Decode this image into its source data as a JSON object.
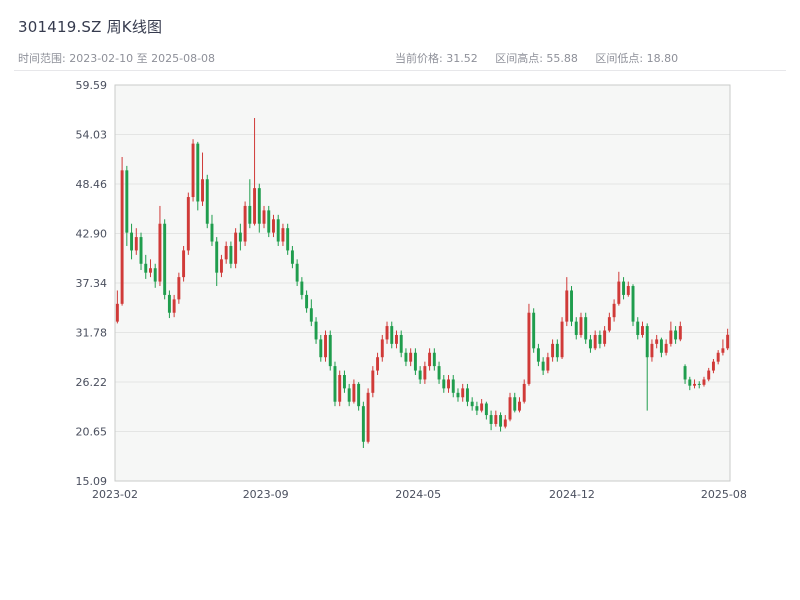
{
  "header": {
    "title": "301419.SZ 周K线图",
    "time_range_label": "时间范围: 2023-02-10 至 2025-08-08",
    "current_price_label": "当前价格: 31.52",
    "range_high_label": "区间高点: 55.88",
    "range_low_label": "区间低点: 18.80"
  },
  "chart_data": {
    "type": "candlestick",
    "title": "301419.SZ 周K线图",
    "interval": "weekly",
    "ticker": "301419.SZ",
    "current_price": 31.52,
    "range_high": 55.88,
    "range_low": 18.8,
    "date_start": "2023-02-10",
    "date_end": "2025-08-08",
    "ylim": [
      15.09,
      59.59
    ],
    "y_ticks": [
      15.09,
      20.65,
      26.22,
      31.78,
      37.34,
      42.9,
      48.46,
      54.03,
      59.59
    ],
    "y_tick_labels": [
      "15.09",
      "20.65",
      "26.22",
      "31.78",
      "37.34",
      "42.90",
      "48.46",
      "54.03",
      "59.59"
    ],
    "x_tick_labels": [
      "2023-02",
      "2023-09",
      "2024-05",
      "2024-12",
      "2025-08"
    ],
    "x_tick_positions": [
      0.0,
      0.245,
      0.493,
      0.743,
      0.99
    ],
    "grid": true,
    "legend": "none",
    "up_color": "#d03a38",
    "down_color": "#1f9d4d",
    "plot_bg": "#f6f7f6",
    "grid_color": "#e4e5e4",
    "axis_border_color": "#c9cbca",
    "tick_label_color": "#4a4f5e",
    "candles_format": "[open, high, low, close] per week",
    "candles": [
      [
        33.0,
        36.5,
        32.8,
        35.0
      ],
      [
        35.0,
        51.5,
        34.8,
        50.0
      ],
      [
        50.0,
        50.5,
        41.5,
        43.0
      ],
      [
        43.0,
        44.0,
        40.0,
        41.0
      ],
      [
        41.0,
        43.5,
        40.5,
        42.5
      ],
      [
        42.5,
        43.0,
        38.8,
        39.5
      ],
      [
        39.5,
        40.5,
        37.8,
        38.5
      ],
      [
        38.5,
        40.0,
        38.0,
        39.0
      ],
      [
        39.0,
        39.5,
        36.8,
        37.5
      ],
      [
        37.5,
        46.0,
        37.0,
        44.0
      ],
      [
        44.0,
        44.5,
        35.5,
        36.0
      ],
      [
        36.0,
        36.5,
        33.4,
        34.0
      ],
      [
        34.0,
        36.0,
        33.5,
        35.5
      ],
      [
        35.5,
        38.5,
        35.0,
        38.0
      ],
      [
        38.0,
        41.5,
        37.5,
        41.0
      ],
      [
        41.0,
        47.5,
        40.5,
        47.0
      ],
      [
        47.0,
        53.5,
        46.5,
        53.0
      ],
      [
        53.0,
        53.2,
        45.5,
        46.5
      ],
      [
        46.5,
        52.0,
        46.0,
        49.0
      ],
      [
        49.0,
        49.5,
        43.5,
        44.0
      ],
      [
        44.0,
        45.0,
        41.5,
        42.0
      ],
      [
        42.0,
        42.5,
        37.0,
        38.5
      ],
      [
        38.5,
        40.5,
        38.0,
        40.0
      ],
      [
        40.0,
        42.0,
        39.5,
        41.5
      ],
      [
        41.5,
        42.0,
        39.0,
        39.5
      ],
      [
        39.5,
        43.5,
        39.0,
        43.0
      ],
      [
        43.0,
        44.0,
        41.0,
        42.0
      ],
      [
        42.0,
        46.5,
        41.5,
        46.0
      ],
      [
        46.0,
        49.0,
        43.5,
        44.0
      ],
      [
        44.0,
        55.88,
        43.8,
        48.0
      ],
      [
        48.0,
        48.5,
        43.0,
        44.0
      ],
      [
        44.0,
        46.0,
        43.5,
        45.5
      ],
      [
        45.5,
        46.0,
        42.5,
        43.0
      ],
      [
        43.0,
        45.0,
        42.5,
        44.5
      ],
      [
        44.5,
        45.0,
        41.5,
        42.0
      ],
      [
        42.0,
        44.0,
        41.5,
        43.5
      ],
      [
        43.5,
        44.0,
        40.5,
        41.0
      ],
      [
        41.0,
        41.5,
        39.0,
        39.5
      ],
      [
        39.5,
        40.0,
        37.0,
        37.5
      ],
      [
        37.5,
        38.0,
        35.5,
        36.0
      ],
      [
        36.0,
        36.5,
        34.0,
        34.5
      ],
      [
        34.5,
        35.5,
        32.5,
        33.0
      ],
      [
        33.0,
        33.5,
        30.5,
        31.0
      ],
      [
        31.0,
        31.5,
        28.5,
        29.0
      ],
      [
        29.0,
        32.0,
        28.5,
        31.5
      ],
      [
        31.5,
        32.0,
        27.5,
        28.0
      ],
      [
        28.0,
        28.5,
        23.5,
        24.0
      ],
      [
        24.0,
        27.5,
        23.5,
        27.0
      ],
      [
        27.0,
        27.5,
        25.0,
        25.5
      ],
      [
        25.5,
        26.0,
        23.5,
        24.0
      ],
      [
        24.0,
        26.5,
        23.8,
        26.0
      ],
      [
        26.0,
        26.2,
        23.0,
        23.5
      ],
      [
        23.5,
        24.0,
        18.8,
        19.5
      ],
      [
        19.5,
        25.5,
        19.3,
        25.0
      ],
      [
        25.0,
        28.0,
        24.5,
        27.5
      ],
      [
        27.5,
        29.5,
        27.0,
        29.0
      ],
      [
        29.0,
        31.5,
        28.5,
        31.0
      ],
      [
        31.0,
        33.0,
        30.5,
        32.5
      ],
      [
        32.5,
        33.0,
        30.0,
        30.5
      ],
      [
        30.5,
        32.0,
        30.0,
        31.5
      ],
      [
        31.5,
        32.0,
        29.0,
        29.5
      ],
      [
        29.5,
        30.0,
        28.0,
        28.5
      ],
      [
        28.5,
        30.0,
        28.0,
        29.5
      ],
      [
        29.5,
        30.0,
        27.0,
        27.5
      ],
      [
        27.5,
        28.0,
        26.0,
        26.5
      ],
      [
        26.5,
        28.5,
        26.0,
        28.0
      ],
      [
        28.0,
        30.0,
        27.5,
        29.5
      ],
      [
        29.5,
        30.0,
        27.5,
        28.0
      ],
      [
        28.0,
        28.5,
        26.0,
        26.5
      ],
      [
        26.5,
        27.0,
        25.0,
        25.5
      ],
      [
        25.5,
        27.0,
        25.0,
        26.5
      ],
      [
        26.5,
        27.0,
        24.5,
        25.0
      ],
      [
        25.0,
        25.5,
        24.0,
        24.5
      ],
      [
        24.5,
        26.0,
        24.0,
        25.5
      ],
      [
        25.5,
        26.0,
        23.5,
        24.0
      ],
      [
        24.0,
        24.5,
        23.0,
        23.5
      ],
      [
        23.5,
        24.0,
        22.5,
        23.0
      ],
      [
        23.0,
        24.3,
        22.8,
        23.8
      ],
      [
        23.8,
        24.0,
        22.0,
        22.5
      ],
      [
        22.5,
        23.0,
        20.8,
        21.5
      ],
      [
        21.5,
        23.0,
        21.2,
        22.5
      ],
      [
        22.5,
        22.8,
        20.65,
        21.2
      ],
      [
        21.2,
        22.5,
        21.0,
        22.0
      ],
      [
        22.0,
        25.0,
        21.8,
        24.5
      ],
      [
        24.5,
        25.0,
        22.8,
        23.0
      ],
      [
        23.0,
        24.5,
        22.8,
        24.0
      ],
      [
        24.0,
        26.5,
        23.8,
        26.0
      ],
      [
        26.0,
        35.0,
        25.8,
        34.0
      ],
      [
        34.0,
        34.5,
        29.5,
        30.0
      ],
      [
        30.0,
        30.5,
        28.0,
        28.5
      ],
      [
        28.5,
        29.0,
        27.0,
        27.5
      ],
      [
        27.5,
        29.5,
        27.2,
        29.0
      ],
      [
        29.0,
        31.0,
        28.5,
        30.5
      ],
      [
        30.5,
        31.0,
        28.5,
        29.0
      ],
      [
        29.0,
        33.5,
        28.8,
        33.0
      ],
      [
        33.0,
        38.0,
        32.5,
        36.5
      ],
      [
        36.5,
        37.0,
        32.5,
        33.0
      ],
      [
        33.0,
        33.5,
        31.0,
        31.5
      ],
      [
        31.5,
        34.0,
        31.2,
        33.5
      ],
      [
        33.5,
        34.0,
        30.5,
        31.0
      ],
      [
        31.0,
        31.5,
        29.5,
        30.0
      ],
      [
        30.0,
        32.0,
        29.8,
        31.5
      ],
      [
        31.5,
        32.0,
        30.0,
        30.5
      ],
      [
        30.5,
        32.5,
        30.2,
        32.0
      ],
      [
        32.0,
        34.0,
        31.8,
        33.5
      ],
      [
        33.5,
        35.5,
        33.0,
        35.0
      ],
      [
        35.0,
        38.6,
        34.8,
        37.5
      ],
      [
        37.5,
        38.0,
        35.5,
        36.0
      ],
      [
        36.0,
        37.5,
        35.8,
        37.0
      ],
      [
        37.0,
        37.2,
        32.5,
        33.0
      ],
      [
        33.0,
        33.5,
        31.0,
        31.5
      ],
      [
        31.5,
        33.0,
        31.2,
        32.5
      ],
      [
        32.5,
        32.8,
        23.0,
        29.0
      ],
      [
        29.0,
        31.0,
        28.5,
        30.5
      ],
      [
        30.5,
        31.5,
        30.0,
        31.0
      ],
      [
        31.0,
        31.2,
        29.0,
        29.5
      ],
      [
        29.5,
        31.0,
        29.2,
        30.5
      ],
      [
        30.5,
        33.0,
        30.2,
        32.0
      ],
      [
        32.0,
        32.5,
        30.5,
        31.0
      ],
      [
        31.0,
        33.0,
        30.8,
        32.5
      ],
      [
        28.0,
        28.2,
        26.0,
        26.5
      ],
      [
        26.5,
        26.8,
        25.3,
        25.8
      ],
      [
        25.8,
        26.5,
        25.5,
        26.0
      ],
      [
        26.0,
        26.3,
        25.5,
        25.9
      ],
      [
        25.9,
        26.8,
        25.7,
        26.5
      ],
      [
        26.5,
        27.8,
        26.3,
        27.5
      ],
      [
        27.5,
        28.8,
        27.2,
        28.5
      ],
      [
        28.5,
        29.8,
        28.2,
        29.5
      ],
      [
        29.5,
        31.0,
        29.2,
        30.0
      ],
      [
        30.0,
        32.2,
        29.8,
        31.52
      ]
    ]
  }
}
